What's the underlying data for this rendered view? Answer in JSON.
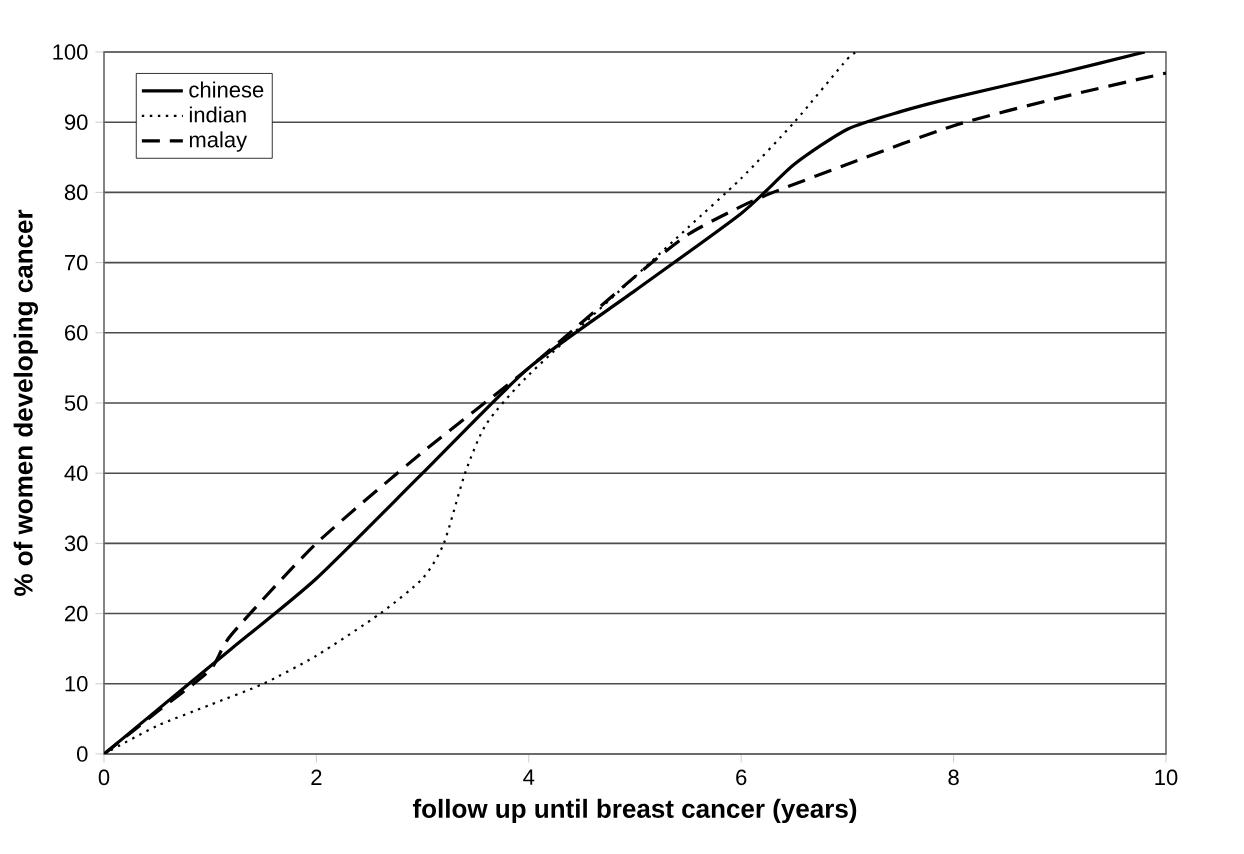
{
  "chart_data": {
    "type": "line",
    "xlabel": "follow up until breast cancer (years)",
    "ylabel": "% of women developing cancer",
    "xlim": [
      0,
      10
    ],
    "ylim": [
      0,
      100
    ],
    "xticks": [
      0,
      2,
      4,
      6,
      8,
      10
    ],
    "yticks": [
      0,
      10,
      20,
      30,
      40,
      50,
      60,
      70,
      80,
      90,
      100
    ],
    "grid": "y",
    "legend": "top left",
    "marker": "none",
    "series": [
      {
        "name": "chinese",
        "color": "#000000",
        "line_style": "solid",
        "x": [
          0,
          0.8,
          1.2,
          2,
          3,
          4,
          5,
          6,
          6.5,
          7,
          7.5,
          8,
          9,
          9.8
        ],
        "values": [
          0,
          10,
          15,
          25,
          40,
          55,
          66,
          77,
          84,
          89,
          91.5,
          93.5,
          97,
          100
        ]
      },
      {
        "name": "indian",
        "color": "#000000",
        "line_style": "dotted",
        "x": [
          0,
          0.5,
          1,
          1.5,
          2,
          2.6,
          3,
          3.2,
          3.4,
          3.6,
          4,
          5,
          5.5,
          6,
          6.5,
          7,
          7.1
        ],
        "values": [
          0,
          4,
          7,
          10,
          14,
          20,
          25,
          30,
          40,
          47,
          54,
          68,
          75,
          82,
          90,
          99,
          100
        ]
      },
      {
        "name": "malay",
        "color": "#000000",
        "line_style": "dashed",
        "x": [
          0,
          0.5,
          1,
          1.2,
          2,
          3,
          4,
          5,
          5.5,
          6,
          6.3,
          7,
          8,
          9,
          10
        ],
        "values": [
          0,
          6,
          12,
          17,
          30,
          43,
          55,
          68,
          74,
          78,
          80,
          84,
          89.5,
          93.5,
          97
        ]
      }
    ]
  }
}
